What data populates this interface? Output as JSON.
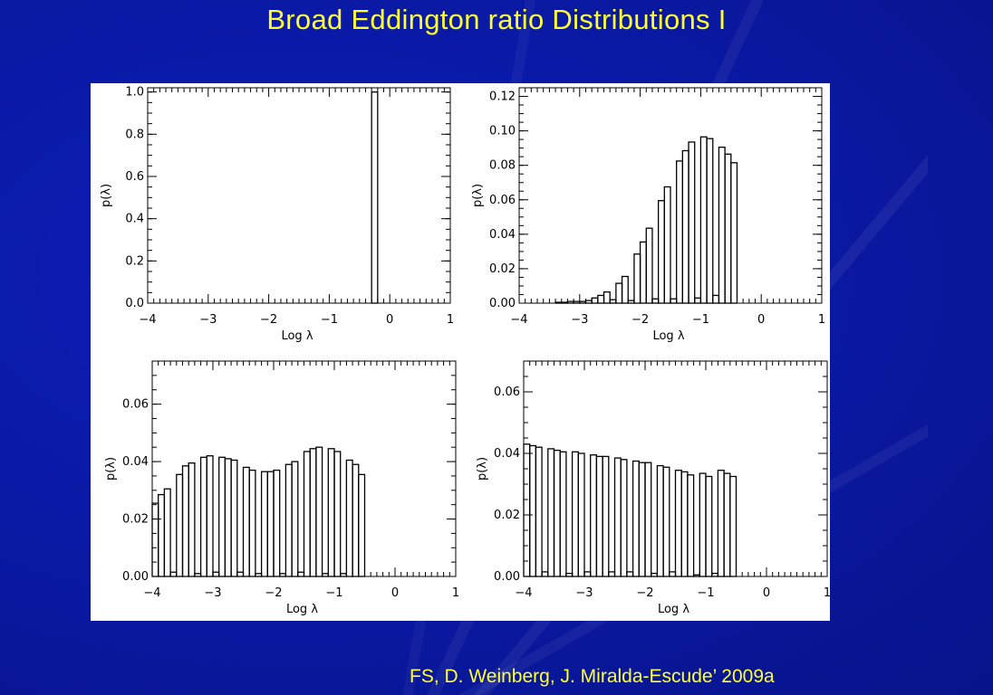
{
  "slide": {
    "title": "Broad Eddington ratio Distributions I",
    "citation": "FS, D. Weinberg, J. Miralda-Escude’ 2009a"
  },
  "colors": {
    "background": "#0a1aa6",
    "text_accent": "#ffff33",
    "panel": "#ffffff",
    "ink": "#000000"
  },
  "chart_data": [
    {
      "type": "bar",
      "xlabel": "Log λ",
      "ylabel": "p(λ)",
      "xlim": [
        -4,
        1
      ],
      "ylim": [
        0,
        1.02
      ],
      "xticks": [
        "−4",
        "−3",
        "−2",
        "−1",
        "0",
        "1"
      ],
      "yticks": [
        "0.0",
        "0.2",
        "0.4",
        "0.6",
        "0.8",
        "1.0"
      ],
      "bins": {
        "start": -4.0,
        "width": 0.1
      },
      "values": [
        0,
        0,
        0,
        0,
        0,
        0,
        0,
        0,
        0,
        0,
        0,
        0,
        0,
        0,
        0,
        0,
        0,
        0,
        0,
        0,
        0,
        0,
        0,
        0,
        0,
        0,
        0,
        0,
        0,
        0,
        0,
        0,
        0,
        0,
        0,
        0,
        0,
        1.0,
        0,
        0,
        0,
        0,
        0,
        0,
        0,
        0,
        0,
        0,
        0,
        0
      ]
    },
    {
      "type": "bar",
      "xlabel": "Log λ",
      "ylabel": "p(λ)",
      "xlim": [
        -4,
        1
      ],
      "ylim": [
        0,
        0.125
      ],
      "xticks": [
        "−4",
        "−3",
        "−2",
        "−1",
        "0",
        "1"
      ],
      "yticks": [
        "0.00",
        "0.02",
        "0.04",
        "0.06",
        "0.08",
        "0.10",
        "0.12"
      ],
      "bins": {
        "start": -4.0,
        "width": 0.1
      },
      "values": [
        0,
        0,
        0,
        0,
        0,
        0,
        0.0005,
        0.0005,
        0.001,
        0.001,
        0.001,
        0.0015,
        0.003,
        0.0045,
        0.0065,
        0.002,
        0.0115,
        0.0155,
        0.0015,
        0.0285,
        0.0355,
        0.0435,
        0.0025,
        0.0595,
        0.0675,
        0.0025,
        0.0825,
        0.0885,
        0.0935,
        0.003,
        0.0965,
        0.0955,
        0.0045,
        0.0905,
        0.0865,
        0.0815,
        0,
        0,
        0,
        0,
        0,
        0,
        0,
        0,
        0,
        0,
        0,
        0,
        0,
        0
      ]
    },
    {
      "type": "bar",
      "xlabel": "Log λ",
      "ylabel": "p(λ)",
      "xlim": [
        -4,
        1
      ],
      "ylim": [
        0,
        0.075
      ],
      "xticks": [
        "−4",
        "−3",
        "−2",
        "−1",
        "0",
        "1"
      ],
      "yticks": [
        "0.00",
        "0.02",
        "0.04",
        "0.06"
      ],
      "bins": {
        "start": -4.0,
        "width": 0.1
      },
      "values": [
        0.0255,
        0.0285,
        0.0305,
        0.0015,
        0.0355,
        0.0385,
        0.0395,
        0.001,
        0.0415,
        0.042,
        0.0015,
        0.0415,
        0.041,
        0.0405,
        0.0015,
        0.038,
        0.037,
        0.001,
        0.0365,
        0.0365,
        0.037,
        0.001,
        0.039,
        0.04,
        0.0015,
        0.0435,
        0.0445,
        0.045,
        0.001,
        0.0445,
        0.0435,
        0.001,
        0.0405,
        0.039,
        0.0355,
        0,
        0,
        0,
        0,
        0,
        0,
        0,
        0,
        0,
        0,
        0,
        0,
        0,
        0,
        0
      ]
    },
    {
      "type": "bar",
      "xlabel": "Log λ",
      "ylabel": "p(λ)",
      "xlim": [
        -4,
        1
      ],
      "ylim": [
        0,
        0.07
      ],
      "xticks": [
        "−4",
        "−3",
        "−2",
        "−1",
        "0",
        "1"
      ],
      "yticks": [
        "0.00",
        "0.02",
        "0.04",
        "0.06"
      ],
      "bins": {
        "start": -4.0,
        "width": 0.1
      },
      "values": [
        0.043,
        0.0425,
        0.042,
        0.0015,
        0.0415,
        0.041,
        0.0405,
        0.001,
        0.0405,
        0.04,
        0.0015,
        0.0395,
        0.039,
        0.039,
        0.0015,
        0.0385,
        0.038,
        0.0015,
        0.0375,
        0.037,
        0.037,
        0.001,
        0.036,
        0.0355,
        0.0015,
        0.0345,
        0.034,
        0.033,
        0.0005,
        0.0335,
        0.0325,
        0.001,
        0.0345,
        0.0335,
        0.0325,
        0,
        0,
        0,
        0,
        0,
        0,
        0,
        0,
        0,
        0,
        0,
        0,
        0,
        0,
        0
      ]
    }
  ]
}
